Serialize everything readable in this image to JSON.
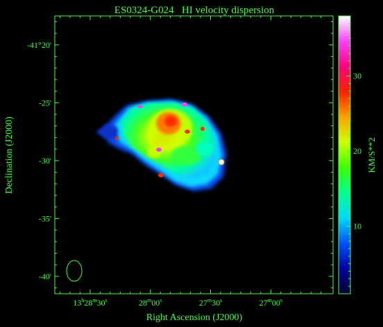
{
  "chart_data": {
    "type": "heatmap",
    "title": "ES0324-G024   HI velocity dispersion",
    "xlabel": "Right Ascension (J2000)",
    "ylabel": "Declination (J2000)",
    "colorbar_label": "KM/S**2",
    "x_ticks": [
      {
        "value_s": 8910,
        "label": "13h28m30s"
      },
      {
        "value_s": 8880,
        "label": "28m00s"
      },
      {
        "value_s": 8850,
        "label": "27m30s"
      },
      {
        "value_s": 8820,
        "label": "27m00s"
      }
    ],
    "y_ticks": [
      {
        "value_arcmin": -20,
        "label": "-41°20'"
      },
      {
        "value_arcmin": -25,
        "label": "-25'"
      },
      {
        "value_arcmin": -30,
        "label": "-30'"
      },
      {
        "value_arcmin": -35,
        "label": "-35'"
      },
      {
        "value_arcmin": -40,
        "label": "-40'"
      }
    ],
    "colorbar_ticks": [
      10,
      20,
      30
    ],
    "colorbar_range": [
      1,
      38
    ],
    "colormap_colors": [
      "#000033",
      "#0000a0",
      "#0050ff",
      "#00d8ff",
      "#00ff90",
      "#40ff00",
      "#d0ff00",
      "#ffa000",
      "#ff2000",
      "#ff0080",
      "#ff40ff",
      "#ffffff"
    ],
    "axis_color": "#44ff44"
  }
}
